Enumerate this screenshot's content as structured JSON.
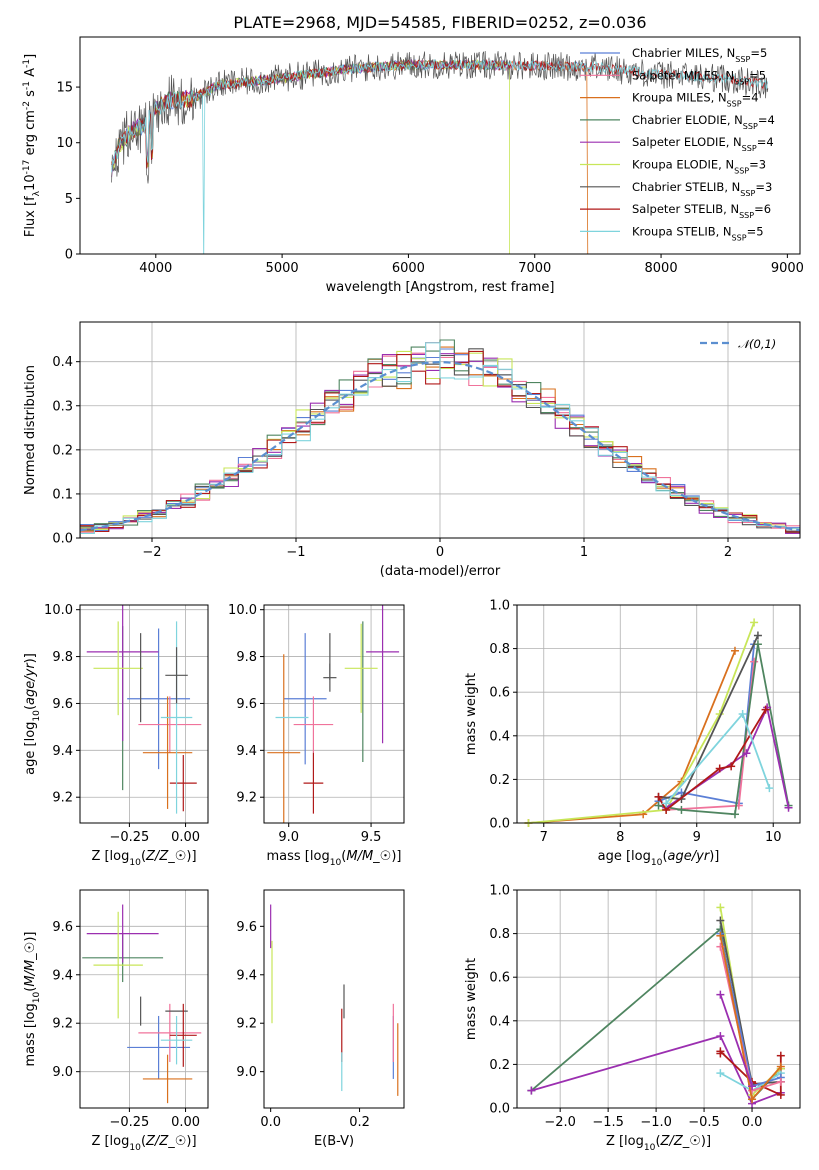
{
  "title": "PLATE=2968, MJD=54585, FIBERID=0252, z=0.036",
  "colors": {
    "chabrier_miles": "#5b7fd6",
    "salpeter_miles": "#f0739b",
    "kroupa_miles": "#d9701e",
    "chabrier_elodie": "#4f8560",
    "salpeter_elodie": "#9b2fb0",
    "kroupa_elodie": "#c8e659",
    "chabrier_stelib": "#555555",
    "salpeter_stelib": "#b01919",
    "kroupa_stelib": "#7fd4dd"
  },
  "chart_data": [
    {
      "id": "spectrum",
      "type": "line",
      "xlabel": "wavelength [Angstrom, rest frame]",
      "ylabel": "Flux [f$_\\lambda$10$^{-17}$ erg cm$^{-2}$ s$^{-1}$ A$^{-1}$]",
      "xlim": [
        3400,
        9100
      ],
      "ylim": [
        0,
        19.5
      ],
      "xticks": [
        4000,
        5000,
        6000,
        7000,
        8000,
        9000
      ],
      "yticks": [
        0,
        5,
        10,
        15
      ],
      "legend_position": "right",
      "legend": [
        {
          "label": "Chabrier MILES, N",
          "sub": "SSP",
          "suffix": "=5",
          "color": "chabrier_miles"
        },
        {
          "label": "Salpeter MILES, N",
          "sub": "SSP",
          "suffix": "=5",
          "color": "salpeter_miles"
        },
        {
          "label": "Kroupa MILES, N",
          "sub": "SSP",
          "suffix": "=4",
          "color": "kroupa_miles"
        },
        {
          "label": "Chabrier ELODIE, N",
          "sub": "SSP",
          "suffix": "=4",
          "color": "chabrier_elodie"
        },
        {
          "label": "Salpeter ELODIE, N",
          "sub": "SSP",
          "suffix": "=4",
          "color": "salpeter_elodie"
        },
        {
          "label": "Kroupa ELODIE, N",
          "sub": "SSP",
          "suffix": "=3",
          "color": "kroupa_elodie"
        },
        {
          "label": "Chabrier STELIB, N",
          "sub": "SSP",
          "suffix": "=3",
          "color": "chabrier_stelib"
        },
        {
          "label": "Salpeter STELIB, N",
          "sub": "SSP",
          "suffix": "=6",
          "color": "salpeter_stelib"
        },
        {
          "label": "Kroupa STELIB, N",
          "sub": "SSP",
          "suffix": "=5",
          "color": "kroupa_stelib"
        }
      ],
      "continuum": {
        "x": [
          3650,
          3700,
          3800,
          3900,
          4000,
          4100,
          4300,
          4500,
          5000,
          5500,
          6000,
          6500,
          7000,
          7500,
          8000,
          8500,
          8850
        ],
        "y": [
          7.5,
          9.5,
          11.0,
          11.5,
          13.0,
          13.8,
          14.0,
          15.2,
          15.8,
          16.6,
          17.0,
          17.0,
          16.9,
          16.8,
          16.1,
          15.8,
          15.2
        ]
      },
      "series": [
        {
          "model": "chabrier_miles",
          "xrange": [
            3650,
            7420
          ]
        },
        {
          "model": "salpeter_miles",
          "xrange": [
            3650,
            7420
          ]
        },
        {
          "model": "kroupa_miles",
          "xrange": [
            3650,
            7420
          ],
          "drop_at": 7420
        },
        {
          "model": "chabrier_elodie",
          "xrange": [
            3650,
            6800
          ]
        },
        {
          "model": "salpeter_elodie",
          "xrange": [
            3650,
            6800
          ]
        },
        {
          "model": "kroupa_elodie",
          "xrange": [
            3650,
            6800
          ],
          "drop_at": 6800
        },
        {
          "model": "chabrier_stelib",
          "xrange": [
            3650,
            8850
          ],
          "noisy": true
        },
        {
          "model": "salpeter_stelib",
          "xrange": [
            3650,
            8850
          ]
        },
        {
          "model": "kroupa_stelib",
          "xrange": [
            3650,
            8850
          ],
          "dips": [
            4380
          ]
        }
      ]
    },
    {
      "id": "residuals",
      "type": "bar",
      "xlabel": "(data-model)/error",
      "ylabel": "Normed distribution",
      "xlim": [
        -2.5,
        2.5
      ],
      "ylim": [
        0,
        0.49
      ],
      "xticks": [
        -2,
        -1,
        0,
        1,
        2
      ],
      "yticks": [
        0.0,
        0.1,
        0.2,
        0.3,
        0.4
      ],
      "grid": true,
      "bins": {
        "start": -2.5,
        "width": 0.1,
        "count": 50
      },
      "legend_label": "$\\mathcal{N}(0,1)$",
      "legend_position": "top-right",
      "reference_curve": {
        "name": "N(0,1)",
        "mean": 0,
        "sigma": 1,
        "style": "dashed",
        "color": "#5b8fd0"
      },
      "series_models": [
        "chabrier_miles",
        "salpeter_miles",
        "kroupa_miles",
        "chabrier_elodie",
        "salpeter_elodie",
        "kroupa_elodie",
        "chabrier_stelib",
        "salpeter_stelib",
        "kroupa_stelib"
      ]
    },
    {
      "id": "age_vs_z",
      "type": "scatter",
      "xlabel": "Z [log$_{10}$($Z/Z_\\odot$)]",
      "ylabel": "age  [log$_{10}$($age/yr$)]",
      "xlim": [
        -0.47,
        0.1
      ],
      "ylim": [
        9.09,
        10.02
      ],
      "xticks": [
        -0.25,
        0.0
      ],
      "xticklabels": [
        "−0.25",
        "0.00"
      ],
      "yticks": [
        9.2,
        9.4,
        9.6,
        9.8,
        10.0
      ],
      "grid": true,
      "points": [
        {
          "model": "chabrier_miles",
          "x": -0.12,
          "y": 9.62,
          "xerr": 0.14,
          "yerr": 0.3
        },
        {
          "model": "salpeter_miles",
          "x": -0.07,
          "y": 9.51,
          "xerr": 0.14,
          "yerr": 0.12
        },
        {
          "model": "kroupa_miles",
          "x": -0.08,
          "y": 9.39,
          "xerr": 0.11,
          "yerr": 0.24
        },
        {
          "model": "chabrier_elodie",
          "x": -0.28,
          "y": 9.58,
          "xerr": 0.0,
          "yerr": 0.35
        },
        {
          "model": "salpeter_elodie",
          "x": -0.28,
          "y": 9.82,
          "xerr": 0.16,
          "yerr": 0.38
        },
        {
          "model": "kroupa_elodie",
          "x": -0.3,
          "y": 9.75,
          "xerr": 0.11,
          "yerr": 0.2
        },
        {
          "model": "chabrier_stelib",
          "x": -0.2,
          "y": 9.71,
          "xerr": 0.0,
          "yerr": 0.19
        },
        {
          "model": "salpeter_stelib",
          "x": -0.01,
          "y": 9.26,
          "xerr": 0.06,
          "yerr": 0.12
        },
        {
          "model": "kroupa_stelib",
          "x": -0.04,
          "y": 9.54,
          "xerr": 0.07,
          "yerr": 0.41
        },
        {
          "model": "chabrier_stelib",
          "x": -0.04,
          "y": 9.72,
          "xerr": 0.05,
          "yerr": 0.12
        }
      ]
    },
    {
      "id": "age_vs_mass",
      "type": "scatter",
      "xlabel": "mass [log$_{10}$($M/M_\\odot$)]",
      "xlim": [
        8.85,
        9.7
      ],
      "ylim": [
        9.09,
        10.02
      ],
      "xticks": [
        9.0,
        9.5
      ],
      "yticks": [
        9.2,
        9.4,
        9.6,
        9.8,
        10.0
      ],
      "grid": true,
      "points": [
        {
          "model": "chabrier_miles",
          "x": 9.1,
          "y": 9.62,
          "xerr": 0.13,
          "yerr": 0.28
        },
        {
          "model": "salpeter_miles",
          "x": 9.15,
          "y": 9.51,
          "xerr": 0.12,
          "yerr": 0.12
        },
        {
          "model": "kroupa_miles",
          "x": 8.97,
          "y": 9.39,
          "xerr": 0.1,
          "yerr": 0.42
        },
        {
          "model": "chabrier_elodie",
          "x": 9.45,
          "y": 9.65,
          "xerr": 0.0,
          "yerr": 0.3
        },
        {
          "model": "salpeter_elodie",
          "x": 9.57,
          "y": 9.82,
          "xerr": 0.1,
          "yerr": 0.39
        },
        {
          "model": "kroupa_elodie",
          "x": 9.44,
          "y": 9.75,
          "xerr": 0.1,
          "yerr": 0.19
        },
        {
          "model": "chabrier_stelib",
          "x": 9.25,
          "y": 9.8,
          "xerr": 0.0,
          "yerr": 0.1
        },
        {
          "model": "chabrier_stelib",
          "x": 9.25,
          "y": 9.71,
          "xerr": 0.04,
          "yerr": 0.06
        },
        {
          "model": "salpeter_stelib",
          "x": 9.15,
          "y": 9.26,
          "xerr": 0.06,
          "yerr": 0.13
        },
        {
          "model": "kroupa_stelib",
          "x": 9.02,
          "y": 9.54,
          "xerr": 0.1,
          "yerr": 0.0
        }
      ]
    },
    {
      "id": "mass_weight_vs_age",
      "type": "line",
      "xlabel": "age  [log$_{10}$($age/yr$)]",
      "ylabel": "mass weight",
      "xlim": [
        6.65,
        10.35
      ],
      "ylim": [
        0,
        1.0
      ],
      "xticks": [
        7,
        8,
        9,
        10
      ],
      "yticks": [
        0.0,
        0.2,
        0.4,
        0.6,
        0.8,
        1.0
      ],
      "grid": true,
      "series": [
        {
          "model": "kroupa_miles",
          "x": [
            6.8,
            8.3,
            8.8,
            9.5
          ],
          "y": [
            0.0,
            0.04,
            0.19,
            0.79
          ]
        },
        {
          "model": "chabrier_miles",
          "x": [
            8.5,
            8.8,
            9.55,
            9.75
          ],
          "y": [
            0.1,
            0.14,
            0.09,
            0.82
          ]
        },
        {
          "model": "salpeter_miles",
          "x": [
            8.6,
            9.55,
            9.75
          ],
          "y": [
            0.06,
            0.08,
            0.74
          ]
        },
        {
          "model": "kroupa_elodie",
          "x": [
            6.8,
            8.6,
            9.3,
            9.75
          ],
          "y": [
            0.0,
            0.06,
            0.5,
            0.92
          ]
        },
        {
          "model": "chabrier_elodie",
          "x": [
            8.5,
            8.8,
            9.5,
            9.8,
            10.2
          ],
          "y": [
            0.08,
            0.06,
            0.04,
            0.82,
            0.08
          ]
        },
        {
          "model": "salpeter_elodie",
          "x": [
            8.6,
            9.65,
            9.92,
            10.2
          ],
          "y": [
            0.07,
            0.32,
            0.53,
            0.07
          ]
        },
        {
          "model": "chabrier_stelib",
          "x": [
            8.5,
            8.8,
            9.8
          ],
          "y": [
            0.12,
            0.11,
            0.86
          ]
        },
        {
          "model": "salpeter_stelib",
          "x": [
            8.5,
            8.6,
            9.3,
            9.45,
            9.9
          ],
          "y": [
            0.12,
            0.06,
            0.25,
            0.26,
            0.52
          ]
        },
        {
          "model": "kroupa_stelib",
          "x": [
            8.6,
            9.6,
            9.95
          ],
          "y": [
            0.09,
            0.5,
            0.16
          ]
        }
      ]
    },
    {
      "id": "mass_vs_z",
      "type": "scatter",
      "xlabel": "Z [log$_{10}$($Z/Z_\\odot$)]",
      "ylabel": "mass [log$_{10}$($M/M_\\odot$)]",
      "xlim": [
        -0.47,
        0.1
      ],
      "ylim": [
        8.85,
        9.75
      ],
      "xticks": [
        -0.25,
        0.0
      ],
      "xticklabels": [
        "−0.25",
        "0.00"
      ],
      "yticks": [
        9.0,
        9.2,
        9.4,
        9.6
      ],
      "grid": true,
      "points": [
        {
          "model": "chabrier_miles",
          "x": -0.12,
          "y": 9.1,
          "xerr": 0.14,
          "yerr": 0.13
        },
        {
          "model": "salpeter_miles",
          "x": -0.07,
          "y": 9.16,
          "xerr": 0.14,
          "yerr": 0.12
        },
        {
          "model": "kroupa_miles",
          "x": -0.08,
          "y": 8.97,
          "xerr": 0.11,
          "yerr": 0.1
        },
        {
          "model": "chabrier_elodie",
          "x": -0.28,
          "y": 9.47,
          "xerr": 0.18,
          "yerr": 0.1
        },
        {
          "model": "salpeter_elodie",
          "x": -0.28,
          "y": 9.57,
          "xerr": 0.16,
          "yerr": 0.12
        },
        {
          "model": "kroupa_elodie",
          "x": -0.3,
          "y": 9.44,
          "xerr": 0.11,
          "yerr": 0.22
        },
        {
          "model": "chabrier_stelib",
          "x": -0.2,
          "y": 9.25,
          "xerr": 0.0,
          "yerr": 0.06
        },
        {
          "model": "chabrier_stelib",
          "x": -0.04,
          "y": 9.25,
          "xerr": 0.05,
          "yerr": 0.0
        },
        {
          "model": "salpeter_stelib",
          "x": -0.01,
          "y": 9.15,
          "xerr": 0.06,
          "yerr": 0.13
        },
        {
          "model": "kroupa_stelib",
          "x": -0.04,
          "y": 9.13,
          "xerr": 0.07,
          "yerr": 0.1
        }
      ]
    },
    {
      "id": "mass_vs_ebv",
      "type": "scatter",
      "xlabel": "E(B-V)",
      "xlim": [
        -0.015,
        0.3
      ],
      "ylim": [
        8.85,
        9.75
      ],
      "xticks": [
        0.0,
        0.2
      ],
      "xticklabels": [
        "0.0",
        "0.2"
      ],
      "yticks": [
        9.0,
        9.2,
        9.4,
        9.6
      ],
      "points": [
        {
          "model": "chabrier_miles",
          "x": 0.276,
          "y": 9.1,
          "yerr": 0.13
        },
        {
          "model": "salpeter_miles",
          "x": 0.276,
          "y": 9.16,
          "yerr": 0.12
        },
        {
          "model": "kroupa_miles",
          "x": 0.286,
          "y": 9.05,
          "yerr": 0.15
        },
        {
          "model": "salpeter_elodie",
          "x": 0.0,
          "y": 9.6,
          "yerr": 0.09
        },
        {
          "model": "kroupa_elodie",
          "x": 0.003,
          "y": 9.37,
          "yerr": 0.17
        },
        {
          "model": "chabrier_stelib",
          "x": 0.165,
          "y": 9.29,
          "yerr": 0.07
        },
        {
          "model": "salpeter_stelib",
          "x": 0.16,
          "y": 9.15,
          "yerr": 0.11
        },
        {
          "model": "kroupa_stelib",
          "x": 0.16,
          "y": 9.0,
          "yerr": 0.08
        }
      ]
    },
    {
      "id": "mass_weight_vs_z",
      "type": "line",
      "xlabel": "Z [log$_{10}$($Z/Z_\\odot$)]",
      "ylabel": "mass weight",
      "xlim": [
        -2.45,
        0.5
      ],
      "ylim": [
        0,
        1.0
      ],
      "xticks": [
        -2.0,
        -1.5,
        -1.0,
        -0.5,
        0.0
      ],
      "xticklabels": [
        "−2.0",
        "−1.5",
        "−1.0",
        "−0.5",
        "0.0"
      ],
      "yticks": [
        0.0,
        0.2,
        0.4,
        0.6,
        0.8,
        1.0
      ],
      "grid": true,
      "series": [
        {
          "model": "chabrier_elodie",
          "x": [
            -2.3,
            -0.33,
            0.0,
            0.3
          ],
          "y": [
            0.08,
            0.82,
            0.04,
            0.18
          ]
        },
        {
          "model": "salpeter_elodie",
          "x": [
            -2.3,
            -0.33,
            0.0,
            0.3
          ],
          "y": [
            0.08,
            0.33,
            0.02,
            0.07
          ]
        },
        {
          "model": "kroupa_elodie",
          "x": [
            -0.33,
            0.0,
            0.3
          ],
          "y": [
            0.92,
            0.06,
            0.18
          ]
        },
        {
          "model": "chabrier_stelib",
          "x": [
            -0.33,
            0.0,
            0.3
          ],
          "y": [
            0.86,
            0.11,
            0.12
          ]
        },
        {
          "model": "salpeter_stelib",
          "x": [
            -0.33,
            -0.33,
            0.0,
            0.3,
            0.3
          ],
          "y": [
            0.25,
            0.26,
            0.12,
            0.06,
            0.24
          ]
        },
        {
          "model": "kroupa_stelib",
          "x": [
            -0.33,
            0.0,
            0.3
          ],
          "y": [
            0.16,
            0.08,
            0.16
          ]
        },
        {
          "model": "chabrier_miles",
          "x": [
            -0.33,
            0.0,
            0.3
          ],
          "y": [
            0.8,
            0.1,
            0.14
          ]
        },
        {
          "model": "salpeter_miles",
          "x": [
            -0.33,
            0.0,
            0.3
          ],
          "y": [
            0.74,
            0.08,
            0.12
          ]
        },
        {
          "model": "kroupa_miles",
          "x": [
            -0.33,
            0.0,
            0.3
          ],
          "y": [
            0.79,
            0.04,
            0.19
          ]
        },
        {
          "model": "salpeter_elodie",
          "x": [
            -0.33,
            0.0
          ],
          "y": [
            0.52,
            0.1
          ]
        }
      ]
    }
  ]
}
